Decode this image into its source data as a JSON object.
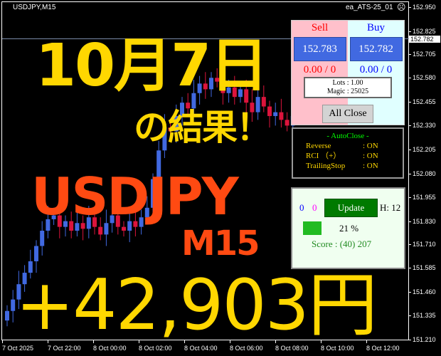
{
  "chart": {
    "symbol_label": "USDJPY,M15",
    "ea_label": "ea_ATS-25_01",
    "ea_status_icon": "frown-face-icon",
    "current_price": "152.782",
    "price_ticks": [
      "152.950",
      "152.825",
      "152.705",
      "152.580",
      "152.455",
      "152.330",
      "152.205",
      "152.080",
      "151.955",
      "151.830",
      "151.710",
      "151.585",
      "151.460",
      "151.335",
      "151.210"
    ],
    "time_ticks": [
      "7 Oct 2025",
      "7 Oct 22:00",
      "8 Oct 00:00",
      "8 Oct 02:00",
      "8 Oct 04:00",
      "8 Oct 06:00",
      "8 Oct 08:00",
      "8 Oct 10:00",
      "8 Oct 12:00"
    ],
    "price_range": [
      151.21,
      152.95
    ],
    "bull_color": "#4169e1",
    "bear_color": "#dc143c",
    "closes": [
      151.36,
      151.42,
      151.5,
      151.56,
      151.62,
      151.7,
      151.78,
      151.84,
      151.86,
      151.8,
      151.83,
      151.78,
      151.82,
      151.79,
      151.85,
      151.8,
      151.76,
      151.82,
      151.86,
      151.8,
      151.78,
      151.83,
      151.8,
      151.85,
      151.9,
      152.05,
      152.2,
      152.32,
      152.3,
      152.38,
      152.45,
      152.42,
      152.5,
      152.55,
      152.52,
      152.58,
      152.56,
      152.5,
      152.53,
      152.48,
      152.52,
      152.45,
      152.4,
      152.48,
      152.43,
      152.38,
      152.4,
      152.36,
      152.33,
      152.38
    ]
  },
  "trade_panel": {
    "sell_title": "Sell",
    "buy_title": "Buy",
    "sell_price": "152.783",
    "buy_price": "152.782",
    "sell_pos": "0.00 / 0",
    "buy_pos": "0.00 / 0",
    "lots": "Lots   : 1.00",
    "magic": "Magic : 25025",
    "all_close": "All Close"
  },
  "auto_close": {
    "title": "- AutoClose -",
    "rows": [
      {
        "k": "Reverse",
        "v": ": ON"
      },
      {
        "k": "RCI （+）",
        "v": ": ON"
      },
      {
        "k": "TrailingStop",
        "v": ": ON"
      }
    ]
  },
  "score_panel": {
    "count_blue": "0",
    "count_magenta": "0",
    "update": "Update",
    "hours": "H: 12",
    "percent": "21 %",
    "progress": 21,
    "score": "Score : (40) 207"
  },
  "overlay": {
    "date": "10月7日",
    "result": "の結果！",
    "pair": "USDJPY",
    "timeframe": "M15",
    "profit": "+42,903円",
    "yellow": "#ffd700",
    "orange": "#ff4a12"
  }
}
